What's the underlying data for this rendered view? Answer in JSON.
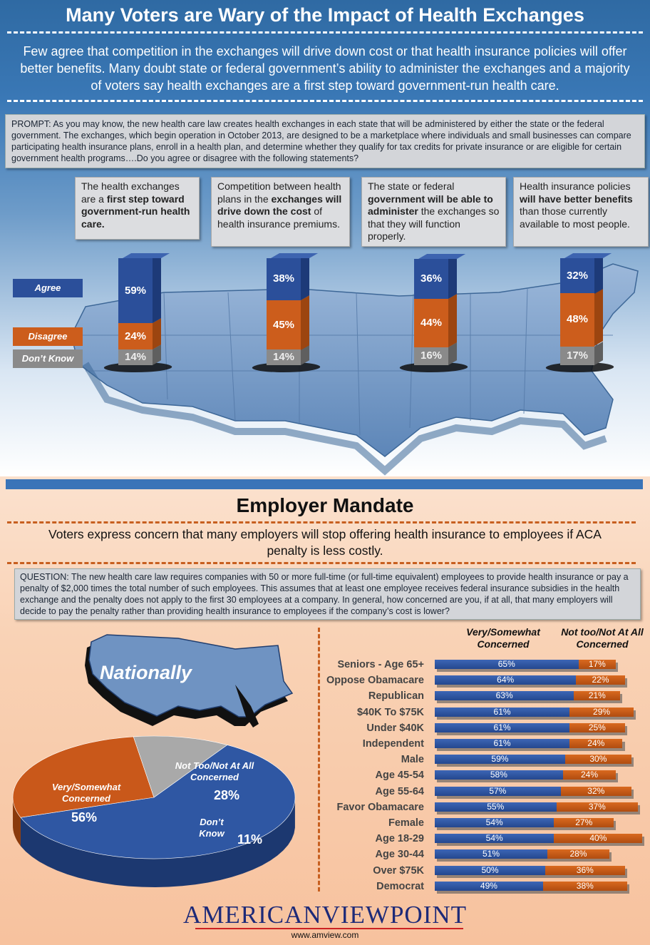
{
  "header": {
    "title": "Many Voters are Wary of the Impact of Health Exchanges",
    "subtitle": "Few agree that competition in the exchanges will drive down cost or that health insurance policies will offer better benefits.  Many doubt state or federal government’s ability to administer the exchanges and a majority of voters say health exchanges are a first step toward government-run health care.",
    "prompt": "PROMPT: As you may know, the new health care law creates health exchanges in each state that will be administered by either the state or the federal government. The exchanges, which begin operation in October 2013, are designed to be a marketplace where individuals and small businesses can compare participating health insurance plans, enroll in a health plan, and determine whether they qualify for tax credits for private insurance or are eligible for certain government health programs….Do you agree or disagree with the following statements?"
  },
  "statements": [
    {
      "pre": "The health exchanges are a ",
      "bold": "first step toward government-run health care.",
      "post": ""
    },
    {
      "pre": "Competition between health plans in the ",
      "bold": "exchanges will drive down the cost",
      "post": " of health insurance premiums."
    },
    {
      "pre": "The state or federal ",
      "bold": "government will be able to administer",
      "post": " the exchanges so that they will function properly."
    },
    {
      "pre": "Health insurance policies ",
      "bold": "will have better benefits",
      "post": " than those currently available to most people."
    }
  ],
  "legend": {
    "agree": "Agree",
    "disagree": "Disagree",
    "dont_know": "Don’t Know"
  },
  "colors": {
    "agree": "#2b4f9a",
    "disagree": "#cc5d1c",
    "dont_know": "#8a8a8a",
    "accent": "#3a74b8"
  },
  "exchange_bars": {
    "agree_labels": [
      "59%",
      "38%",
      "36%",
      "32%"
    ],
    "disagree_labels": [
      "24%",
      "45%",
      "44%",
      "48%"
    ],
    "dont_know_labels": [
      "14%",
      "14%",
      "16%",
      "17%"
    ]
  },
  "chart_data": [
    {
      "type": "bar",
      "stacked": true,
      "categories": [
        "The health exchanges are a first step toward government-run health care.",
        "Competition between health plans in the exchanges will drive down the cost of health insurance premiums.",
        "The state or federal government will be able to administer the exchanges so that they will function properly.",
        "Health insurance policies will have better benefits than those currently available to most people."
      ],
      "series": [
        {
          "name": "Agree",
          "values": [
            59,
            38,
            36,
            32
          ]
        },
        {
          "name": "Disagree",
          "values": [
            24,
            45,
            44,
            48
          ]
        },
        {
          "name": "Don’t Know",
          "values": [
            14,
            14,
            16,
            17
          ]
        }
      ]
    },
    {
      "type": "pie",
      "labels": [
        "Very/Somewhat Concerned",
        "Not Too/Not At All Concerned",
        "Don’t Know"
      ],
      "values": [
        56,
        28,
        11
      ]
    },
    {
      "type": "bar",
      "orientation": "horizontal",
      "stacked": true,
      "categories": [
        "Seniors - Age 65+",
        "Oppose Obamacare",
        "Republican",
        "$40K To $75K",
        "Under $40K",
        "Independent",
        "Male",
        "Age 45-54",
        "Age 55-64",
        "Favor Obamacare",
        "Female",
        "Age 18-29",
        "Age 30-44",
        "Over $75K",
        "Democrat"
      ],
      "series": [
        {
          "name": "Very/Somewhat Concerned",
          "values": [
            65,
            64,
            63,
            61,
            61,
            61,
            59,
            58,
            57,
            55,
            54,
            54,
            51,
            50,
            49
          ]
        },
        {
          "name": "Not too/Not At All Concerned",
          "values": [
            17,
            22,
            21,
            29,
            25,
            24,
            30,
            24,
            32,
            37,
            27,
            40,
            28,
            36,
            38
          ]
        }
      ]
    }
  ],
  "employer": {
    "title": "Employer Mandate",
    "subtitle": "Voters express concern that many employers will stop offering health insurance to employees if ACA penalty is less costly.",
    "question": "QUESTION: The new health care law requires companies with 50 or more full-time (or full-time equivalent) employees to provide health insurance or pay a penalty of $2,000 times the total number of such employees. This assumes that at least one employee receives federal insurance subsidies in the health exchange and the penalty does not apply to the first 30 employees at a company. In general, how concerned are you, if at all, that many employers will decide to pay the penalty rather than providing health insurance to employees if the company’s cost is lower?"
  },
  "nationally": {
    "label": "Nationally",
    "pie": [
      {
        "label": "Very/Somewhat Concerned",
        "value": "56%"
      },
      {
        "label": "Not Too/Not At All Concerned",
        "value": "28%"
      },
      {
        "label": "Don’t Know",
        "value": "11%"
      }
    ]
  },
  "segments": {
    "col1": "Very/Somewhat Concerned",
    "col2": "Not too/Not At All Concerned"
  },
  "footer": {
    "logo": "AMERICANVIEWPOINT",
    "url": "www.amview.com"
  }
}
